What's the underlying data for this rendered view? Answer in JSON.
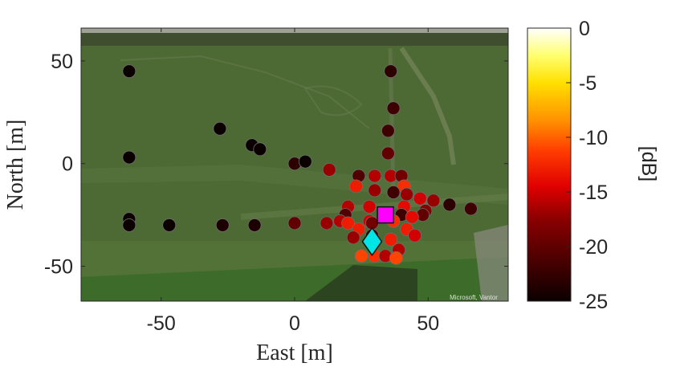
{
  "chart_data": {
    "type": "scatter",
    "title": "",
    "xlabel": "East [m]",
    "ylabel": "North [m]",
    "xlim": [
      -80,
      80
    ],
    "ylim": [
      -67,
      66
    ],
    "xticks": [
      -50,
      0,
      50
    ],
    "yticks": [
      50,
      0,
      -50
    ],
    "grid": false,
    "background": "satellite aerial photo (grass field with dirt tracks)",
    "map_attribution": "Microsoft, Vantor",
    "colorbar": {
      "label": "[dB]",
      "ticks": [
        0,
        -5,
        -10,
        -15,
        -20,
        -25
      ],
      "range": [
        -25,
        0
      ],
      "colormap": "hot"
    },
    "points": [
      {
        "x": -62,
        "y": 45,
        "v": -26
      },
      {
        "x": 36,
        "y": 45,
        "v": -23
      },
      {
        "x": 37,
        "y": 27,
        "v": -22
      },
      {
        "x": -28,
        "y": 17,
        "v": -26
      },
      {
        "x": 35,
        "y": 16,
        "v": -22
      },
      {
        "x": -16,
        "y": 9,
        "v": -26
      },
      {
        "x": -13,
        "y": 7,
        "v": -25
      },
      {
        "x": 35,
        "y": 5,
        "v": -20
      },
      {
        "x": -62,
        "y": 3,
        "v": -26
      },
      {
        "x": 0,
        "y": 0,
        "v": -23
      },
      {
        "x": 4,
        "y": 1,
        "v": -26
      },
      {
        "x": 13,
        "y": -3,
        "v": -17
      },
      {
        "x": 24,
        "y": -6,
        "v": -21
      },
      {
        "x": 30,
        "y": -6,
        "v": -16
      },
      {
        "x": 36,
        "y": -6,
        "v": -16
      },
      {
        "x": 40,
        "y": -6,
        "v": -19
      },
      {
        "x": 23,
        "y": -11,
        "v": -13
      },
      {
        "x": 41,
        "y": -11,
        "v": -12
      },
      {
        "x": 30,
        "y": -13,
        "v": -17
      },
      {
        "x": 37,
        "y": -14,
        "v": -22
      },
      {
        "x": 42,
        "y": -15,
        "v": -17
      },
      {
        "x": 47,
        "y": -17,
        "v": -15
      },
      {
        "x": 52,
        "y": -18,
        "v": -17
      },
      {
        "x": 58,
        "y": -20,
        "v": -23
      },
      {
        "x": 66,
        "y": -22,
        "v": -22
      },
      {
        "x": 20,
        "y": -21,
        "v": -16
      },
      {
        "x": 28,
        "y": -21,
        "v": -15
      },
      {
        "x": 41,
        "y": -21,
        "v": -14
      },
      {
        "x": 49,
        "y": -23,
        "v": -18
      },
      {
        "x": 19,
        "y": -25,
        "v": -21
      },
      {
        "x": 40,
        "y": -25,
        "v": -22
      },
      {
        "x": 48,
        "y": -25,
        "v": -20
      },
      {
        "x": -62,
        "y": -27,
        "v": -26
      },
      {
        "x": 17,
        "y": -28,
        "v": -16
      },
      {
        "x": 28,
        "y": -28,
        "v": -15
      },
      {
        "x": 37,
        "y": -28,
        "v": -12
      },
      {
        "x": 44,
        "y": -26,
        "v": -14
      },
      {
        "x": -62,
        "y": -30,
        "v": -26
      },
      {
        "x": -47,
        "y": -30,
        "v": -26
      },
      {
        "x": -27,
        "y": -30,
        "v": -24
      },
      {
        "x": -15,
        "y": -30,
        "v": -24
      },
      {
        "x": 0,
        "y": -29,
        "v": -20
      },
      {
        "x": 12,
        "y": -29,
        "v": -17
      },
      {
        "x": 20,
        "y": -29,
        "v": -13
      },
      {
        "x": 29,
        "y": -29,
        "v": -19
      },
      {
        "x": 24,
        "y": -32,
        "v": -13
      },
      {
        "x": 42,
        "y": -32,
        "v": -13
      },
      {
        "x": 22,
        "y": -36,
        "v": -17
      },
      {
        "x": 29,
        "y": -35,
        "v": -21
      },
      {
        "x": 45,
        "y": -35,
        "v": -15
      },
      {
        "x": 36,
        "y": -37,
        "v": -13
      },
      {
        "x": 39,
        "y": -42,
        "v": -16
      },
      {
        "x": 25,
        "y": -45,
        "v": -11
      },
      {
        "x": 30,
        "y": -45,
        "v": -12
      },
      {
        "x": 34,
        "y": -45,
        "v": -16
      },
      {
        "x": 38,
        "y": -46,
        "v": -11
      }
    ],
    "markers": [
      {
        "name": "square",
        "shape": "square",
        "x": 34,
        "y": -25,
        "color": "#ff00ff"
      },
      {
        "name": "diamond",
        "shape": "diamond",
        "x": 29,
        "y": -38,
        "color": "#00e5e5"
      }
    ]
  }
}
